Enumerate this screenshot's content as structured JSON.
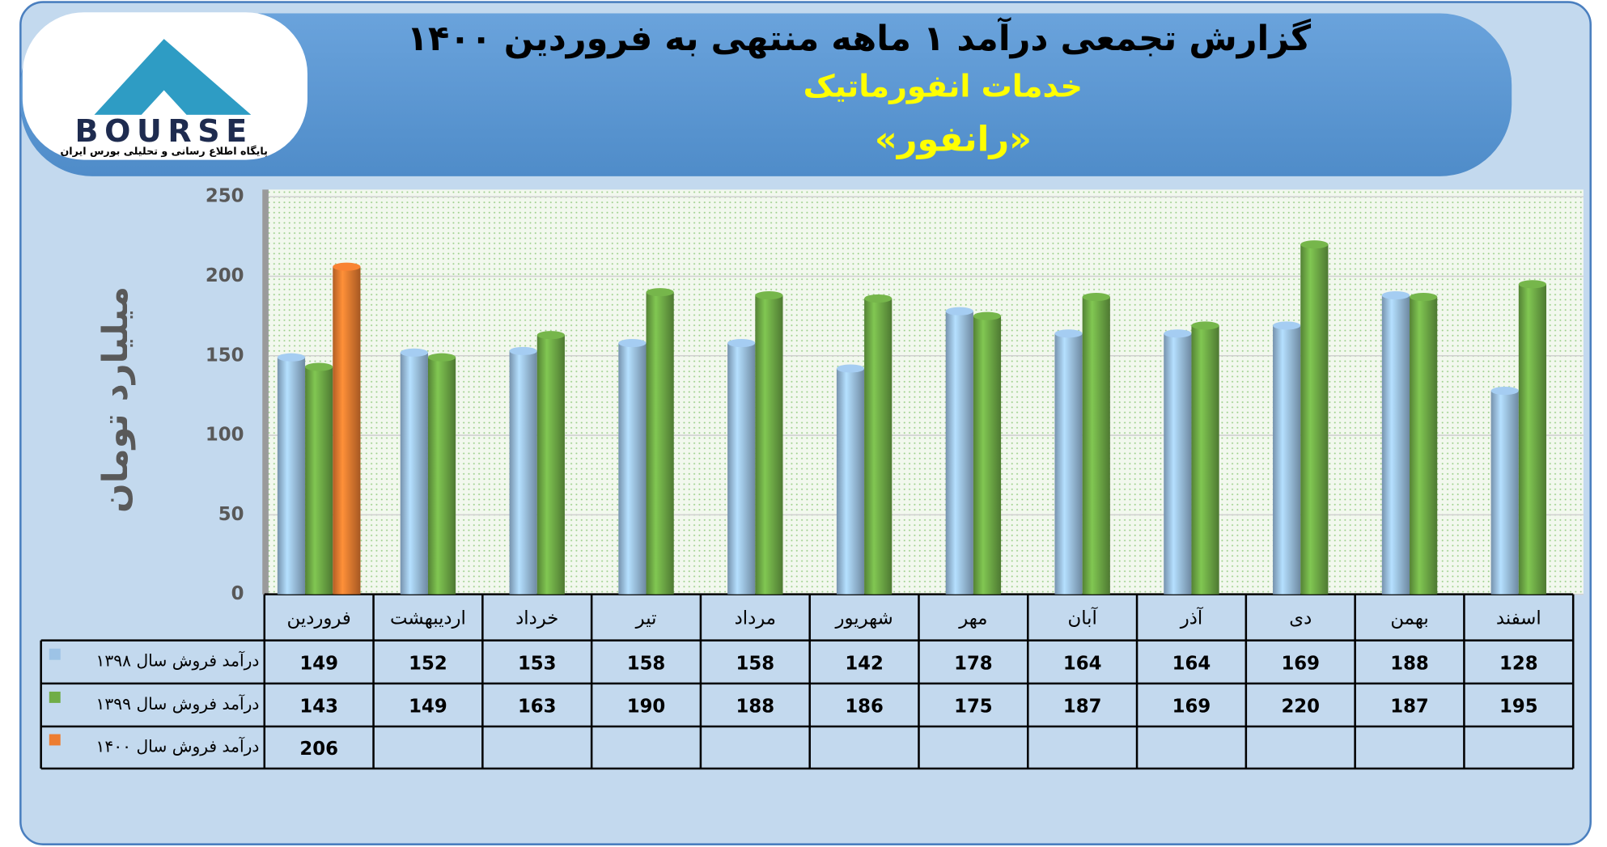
{
  "logo": {
    "name": "BOURSE",
    "tagline": "پایگاه اطلاع رسانی و تحلیلی بورس ایران"
  },
  "chart_data": {
    "type": "bar",
    "title": "گزارش تجمعی درآمد ۱ ماهه منتهی به فروردین ۱۴۰۰",
    "subtitle": "خدمات انفورماتیک",
    "company": "«رانفور»",
    "y_label": "میلیارد تومان",
    "categories": [
      "فروردین",
      "اردیبهشت",
      "خرداد",
      "تیر",
      "مرداد",
      "شهریور",
      "مهر",
      "آبان",
      "آذر",
      "دی",
      "بهمن",
      "اسفند"
    ],
    "series": [
      {
        "name": "درآمد فروش سال ۱۳۹۸",
        "color": "#9dc3e6",
        "values": [
          149,
          152,
          153,
          158,
          158,
          142,
          178,
          164,
          164,
          169,
          188,
          128
        ]
      },
      {
        "name": "درآمد فروش سال ۱۳۹۹",
        "color": "#70ad47",
        "values": [
          143,
          149,
          163,
          190,
          188,
          186,
          175,
          187,
          169,
          220,
          187,
          195
        ]
      },
      {
        "name": "درآمد فروش سال ۱۴۰۰",
        "color": "#ed7d31",
        "values": [
          206,
          null,
          null,
          null,
          null,
          null,
          null,
          null,
          null,
          null,
          null,
          null
        ]
      }
    ],
    "ylim": [
      0,
      250
    ],
    "yticks": [
      0,
      50,
      100,
      150,
      200,
      250
    ],
    "grid": true
  }
}
